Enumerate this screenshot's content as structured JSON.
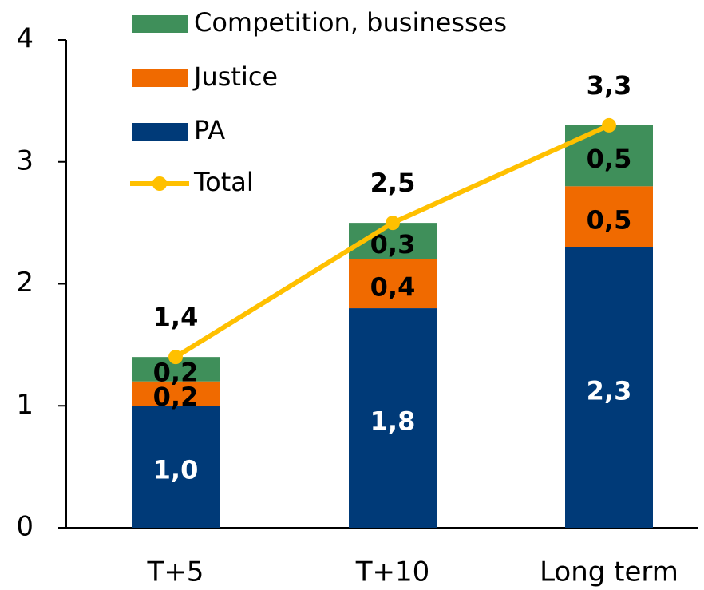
{
  "chart_data": {
    "type": "bar",
    "stacked": true,
    "categories": [
      "T+5",
      "T+10",
      "Long term"
    ],
    "series": [
      {
        "name": "PA",
        "color": "#003a78",
        "values": [
          1.0,
          1.8,
          2.3
        ],
        "value_labels": [
          "1,0",
          "1,8",
          "2,3"
        ]
      },
      {
        "name": "Justice",
        "color": "#f06a00",
        "values": [
          0.2,
          0.4,
          0.5
        ],
        "value_labels": [
          "0,2",
          "0,4",
          "0,5"
        ]
      },
      {
        "name": "Competition, businesses",
        "color": "#3f8f5a",
        "values": [
          0.2,
          0.3,
          0.5
        ],
        "value_labels": [
          "0,2",
          "0,3",
          "0,5"
        ]
      },
      {
        "name": "Total",
        "type": "line",
        "color": "#ffc000",
        "values": [
          1.4,
          2.5,
          3.3
        ],
        "value_labels": [
          "1,4",
          "2,5",
          "3,3"
        ]
      }
    ],
    "ylim": [
      0,
      4
    ],
    "yticks": [
      0,
      1,
      2,
      3,
      4
    ],
    "grid": false,
    "legend": "top-left"
  }
}
